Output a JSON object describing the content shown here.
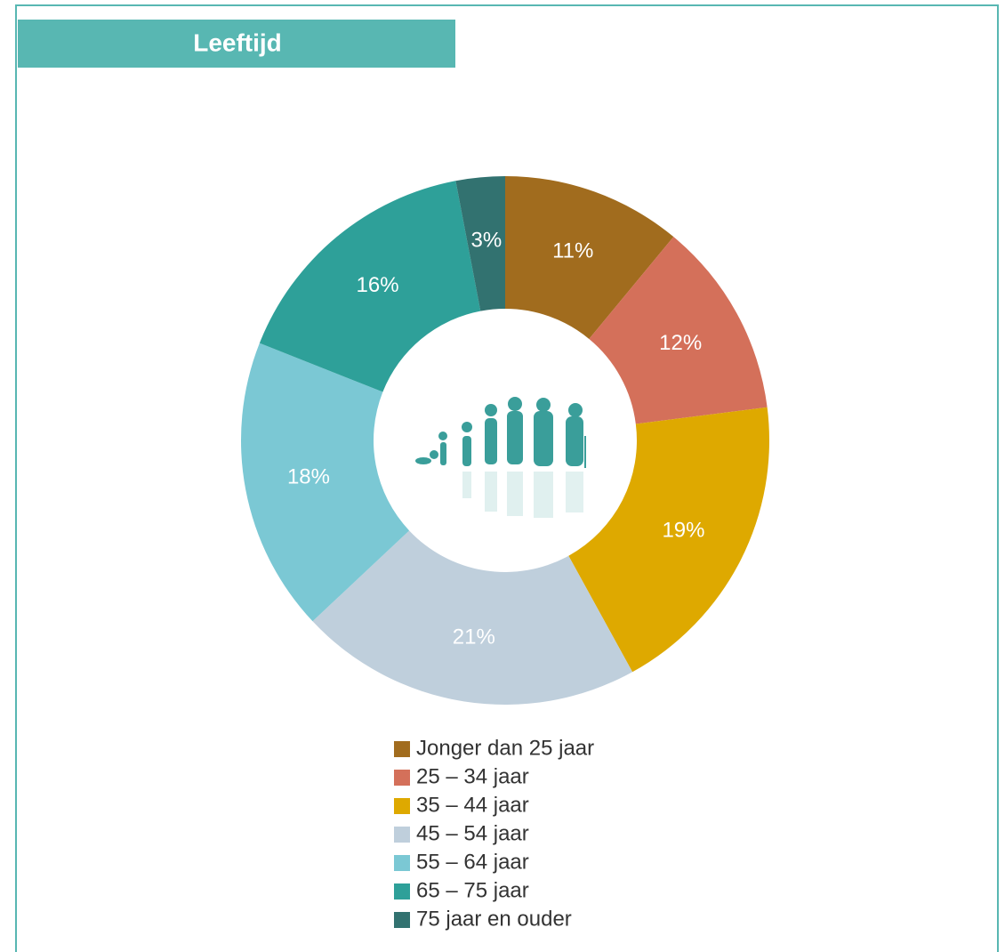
{
  "chart_data": {
    "type": "donut",
    "title": "Leeftijd",
    "categories": [
      "Jonger dan 25 jaar",
      "25 – 34 jaar",
      "35 – 44 jaar",
      "45 – 54 jaar",
      "55 – 64 jaar",
      "65 – 75 jaar",
      "75 jaar en ouder"
    ],
    "values": [
      11,
      12,
      19,
      21,
      18,
      16,
      3
    ],
    "value_labels": [
      "11%",
      "12%",
      "19%",
      "21%",
      "18%",
      "16%",
      "3%"
    ],
    "colors": [
      "#A16C1E",
      "#D4705A",
      "#DEA900",
      "#BFCFDC",
      "#7BC8D4",
      "#2EA099",
      "#327270"
    ],
    "legend": "bottom"
  }
}
